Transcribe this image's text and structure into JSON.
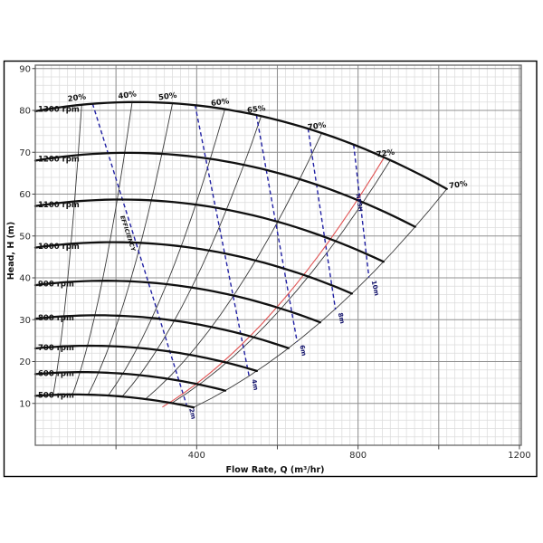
{
  "figure": {
    "background": "#ffffff",
    "border_color": "#000000",
    "kind": "centrifugal pump performance chart"
  },
  "chart_data": {
    "type": "line",
    "title": "",
    "xlabel": "Flow Rate, Q (m³/hr)",
    "ylabel": "Head, H (m)",
    "xlim": [
      0,
      1205
    ],
    "ylim": [
      0,
      90.8
    ],
    "xticks": [
      400,
      800,
      1200
    ],
    "yticks": [
      10,
      20,
      30,
      40,
      50,
      60,
      70,
      80,
      90
    ],
    "grid": {
      "on": true,
      "minor_x": 20,
      "minor_y": 2,
      "major_x": 200,
      "major_y": 10
    },
    "colors": {
      "pump_curve": "#101010",
      "efficiency_line": "#3a3a3a",
      "npsh_line": "#2121a3",
      "bep_line": "#e05252",
      "grid_minor": "#dcdcdc",
      "grid_major": "#919191",
      "frame": "#666666",
      "text": "#1a1a1a"
    },
    "affinity_model": {
      "base_rpm": 1300,
      "peak_head_m": 82,
      "peak_flow_m3hr": 250,
      "quad_coeff": 3.5e-05,
      "end_flow_at_base": 1020,
      "end_head_at_base": 61
    },
    "pump_curves": [
      {
        "rpm": 500,
        "label": "500 rpm",
        "shutoff_head": 11.8,
        "end": {
          "q": 392,
          "h": 9.0
        }
      },
      {
        "rpm": 600,
        "label": "600 rpm",
        "shutoff_head": 17.0,
        "end": {
          "q": 471,
          "h": 13.0
        }
      },
      {
        "rpm": 700,
        "label": "700 rpm",
        "shutoff_head": 23.1,
        "end": {
          "q": 549,
          "h": 17.7
        }
      },
      {
        "rpm": 800,
        "label": "800 rpm",
        "shutoff_head": 30.2,
        "end": {
          "q": 628,
          "h": 23.1
        }
      },
      {
        "rpm": 900,
        "label": "900 rpm",
        "shutoff_head": 38.3,
        "end": {
          "q": 706,
          "h": 29.2
        }
      },
      {
        "rpm": 1000,
        "label": "1000 rpm",
        "shutoff_head": 47.2,
        "end": {
          "q": 785,
          "h": 36.1
        }
      },
      {
        "rpm": 1100,
        "label": "1100 rpm",
        "shutoff_head": 57.1,
        "end": {
          "q": 863,
          "h": 43.7
        }
      },
      {
        "rpm": 1200,
        "label": "1200 rpm",
        "shutoff_head": 68.0,
        "end": {
          "q": 942,
          "h": 52.0
        }
      },
      {
        "rpm": 1300,
        "label": "1300 rpm",
        "shutoff_head": 79.8,
        "peak": {
          "q": 250,
          "h": 82
        },
        "end": {
          "q": 1020,
          "h": 61.0
        }
      }
    ],
    "efficiency_lines": [
      {
        "label": "20%",
        "q_at_1300": 115
      },
      {
        "label": "40%",
        "q_at_1300": 240
      },
      {
        "label": "50%",
        "q_at_1300": 340
      },
      {
        "label": "60%",
        "q_at_1300": 470
      },
      {
        "label": "65%",
        "q_at_1300": 560
      },
      {
        "label": "70%",
        "q_at_1300": 710
      },
      {
        "label": "72%",
        "q_at_1300": 880
      },
      {
        "label": "70%",
        "q_at_1300": 1020,
        "side": "right"
      }
    ],
    "efficiency_family_label": {
      "text": "EFFICIENCY",
      "q": 225,
      "h": 50.5,
      "rotation": 72
    },
    "npsh_family_label": {
      "text": "NPSH",
      "q": 795,
      "h": 60,
      "rotation": 81
    },
    "npsh_lines": [
      {
        "label": "2m",
        "top": {
          "q": 142,
          "h": 81.6
        },
        "bottom": {
          "q": 375,
          "h": 9.6
        }
      },
      {
        "label": "4m",
        "top": {
          "q": 396,
          "h": 81.3
        },
        "bottom": {
          "q": 530,
          "h": 16.5
        }
      },
      {
        "label": "6m",
        "top": {
          "q": 548,
          "h": 78.9
        },
        "bottom": {
          "q": 649,
          "h": 24.7
        }
      },
      {
        "label": "8m",
        "top": {
          "q": 676,
          "h": 75.7
        },
        "bottom": {
          "q": 744,
          "h": 32.4
        }
      },
      {
        "label": "10m",
        "top": {
          "q": 789,
          "h": 71.8
        },
        "bottom": {
          "q": 827,
          "h": 40.1
        }
      }
    ],
    "bep_line": {
      "k": 9.2e-05,
      "q_start": 315,
      "q_end": 866
    }
  }
}
